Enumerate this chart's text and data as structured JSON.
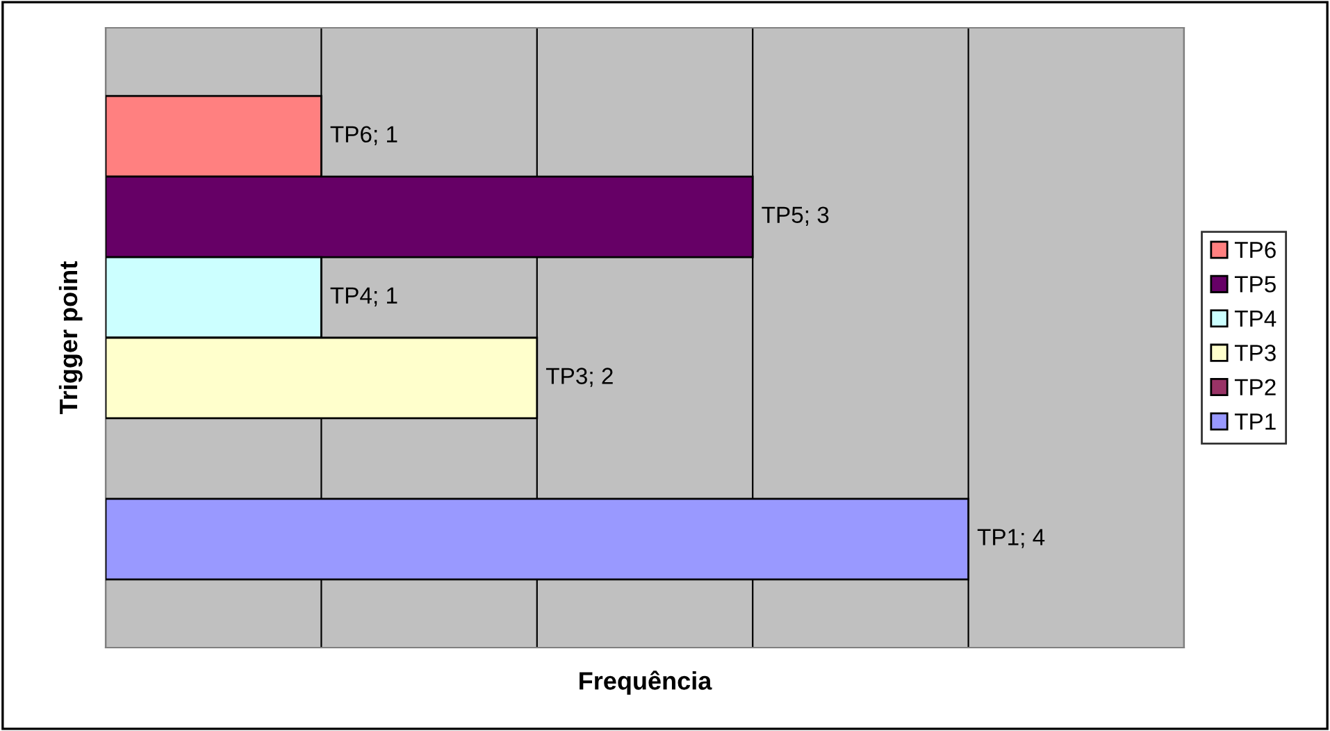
{
  "chart_data": {
    "type": "bar",
    "orientation": "horizontal",
    "xlabel": "Frequência",
    "ylabel": "Trigger point",
    "categories": [
      null
    ],
    "series": [
      {
        "name": "TP6",
        "color": "#ff8080",
        "values": [
          1
        ],
        "value_labels": [
          "TP6; 1"
        ]
      },
      {
        "name": "TP5",
        "color": "#660066",
        "values": [
          3
        ],
        "value_labels": [
          "TP5; 3"
        ]
      },
      {
        "name": "TP4",
        "color": "#ccffff",
        "values": [
          1
        ],
        "value_labels": [
          "TP4; 1"
        ]
      },
      {
        "name": "TP3",
        "color": "#ffffcc",
        "values": [
          2
        ],
        "value_labels": [
          "TP3; 2"
        ]
      },
      {
        "name": "TP2",
        "color": "#993366",
        "values": [
          null
        ],
        "value_labels": [
          null
        ]
      },
      {
        "name": "TP1",
        "color": "#9999ff",
        "values": [
          4
        ],
        "value_labels": [
          "TP1; 4"
        ]
      }
    ],
    "xlim": [
      0,
      5
    ],
    "xticks": [
      {
        "value": 0,
        "label": null
      },
      {
        "value": 1,
        "label": null
      },
      {
        "value": 2,
        "label": null
      },
      {
        "value": 3,
        "label": null
      },
      {
        "value": 4,
        "label": null
      },
      {
        "value": 5,
        "label": null
      }
    ],
    "grid": "x",
    "legend": "right",
    "tick_labels": false
  }
}
